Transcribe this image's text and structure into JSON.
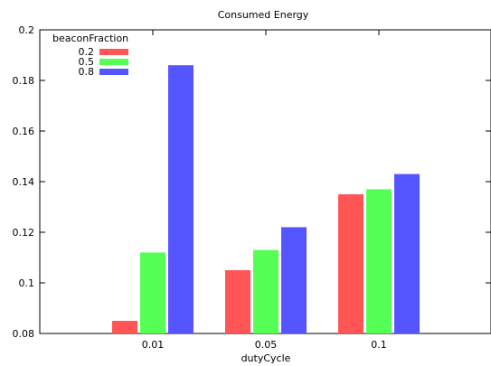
{
  "chart_data": {
    "type": "bar",
    "title": "Consumed Energy",
    "xlabel": "dutyCycle",
    "ylabel": "",
    "categories": [
      "0.01",
      "0.05",
      "0.1"
    ],
    "ylim": [
      0.08,
      0.2
    ],
    "yticks": [
      "0.08",
      "0.1",
      "0.12",
      "0.14",
      "0.16",
      "0.18",
      "0.2"
    ],
    "legend": {
      "title": "beaconFraction",
      "placement": "top-left"
    },
    "series": [
      {
        "name": "0.2",
        "color": "#ff5555",
        "values": [
          0.085,
          0.105,
          0.135
        ]
      },
      {
        "name": "0.5",
        "color": "#55ff55",
        "values": [
          0.112,
          0.113,
          0.137
        ]
      },
      {
        "name": "0.8",
        "color": "#5555ff",
        "values": [
          0.186,
          0.122,
          0.143
        ]
      }
    ],
    "grid": false
  }
}
